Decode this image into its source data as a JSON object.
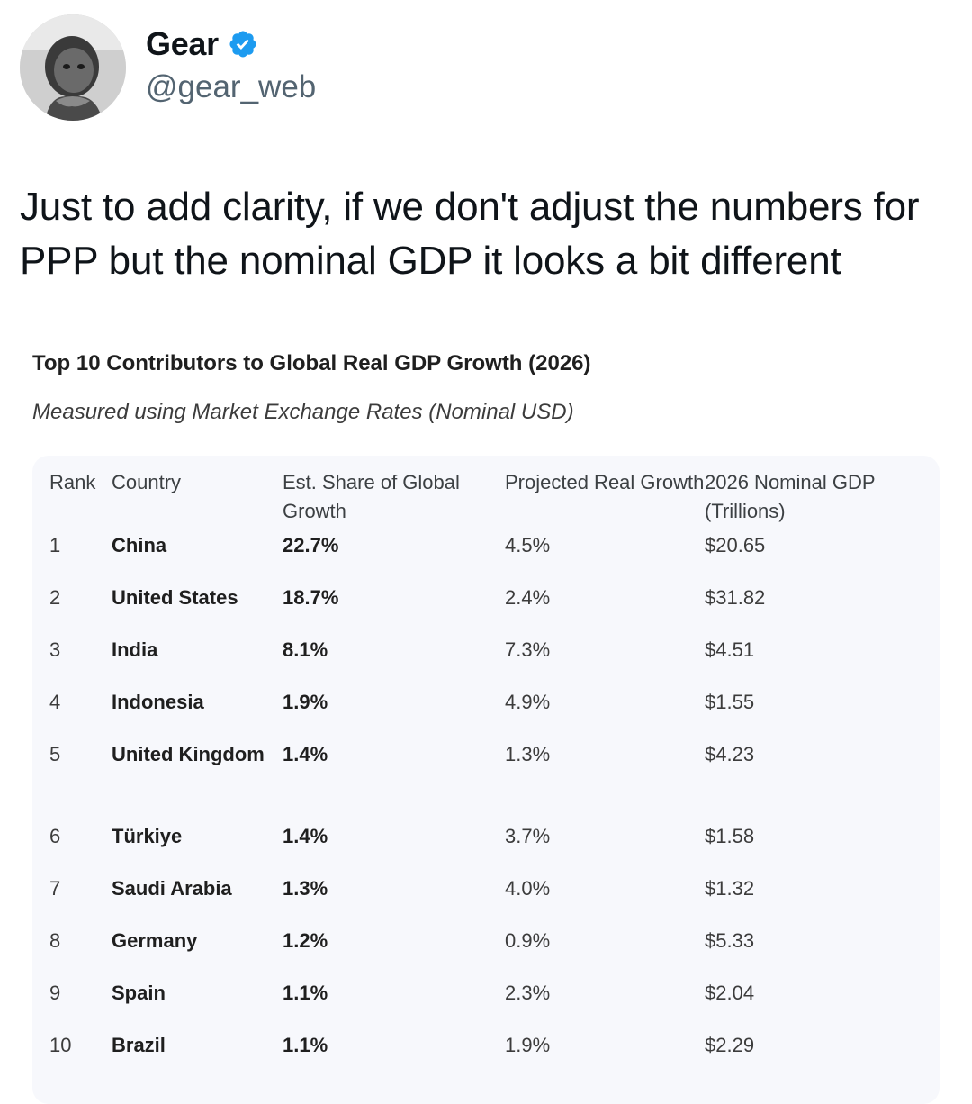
{
  "author": {
    "display_name": "Gear",
    "handle": "@gear_web",
    "verified_icon": "verified-badge-icon",
    "verified_color": "#1d9bf0"
  },
  "tweet": {
    "text": "Just to add clarity, if we don't adjust the numbers for PPP but the nominal GDP it looks a bit different"
  },
  "embed": {
    "title": "Top 10 Contributors to Global Real GDP Growth (2026)",
    "subtitle": "Measured using Market Exchange Rates (Nominal USD)",
    "table": {
      "headers": {
        "rank": "Rank",
        "country": "Country",
        "share": "Est. Share of Global Growth",
        "growth": "Projected Real Growth",
        "gdp": "2026 Nominal GDP (Trillions)"
      },
      "rows": [
        {
          "rank": "1",
          "country": "China",
          "share": "22.7%",
          "growth": "4.5%",
          "gdp": "$20.65"
        },
        {
          "rank": "2",
          "country": "United States",
          "share": "18.7%",
          "growth": "2.4%",
          "gdp": "$31.82"
        },
        {
          "rank": "3",
          "country": "India",
          "share": "8.1%",
          "growth": "7.3%",
          "gdp": "$4.51"
        },
        {
          "rank": "4",
          "country": "Indonesia",
          "share": "1.9%",
          "growth": "4.9%",
          "gdp": "$1.55"
        },
        {
          "rank": "5",
          "country": "United Kingdom",
          "share": "1.4%",
          "growth": "1.3%",
          "gdp": "$4.23"
        },
        {
          "rank": "6",
          "country": "Türkiye",
          "share": "1.4%",
          "growth": "3.7%",
          "gdp": "$1.58"
        },
        {
          "rank": "7",
          "country": "Saudi Arabia",
          "share": "1.3%",
          "growth": "4.0%",
          "gdp": "$1.32"
        },
        {
          "rank": "8",
          "country": "Germany",
          "share": "1.2%",
          "growth": "0.9%",
          "gdp": "$5.33"
        },
        {
          "rank": "9",
          "country": "Spain",
          "share": "1.1%",
          "growth": "2.3%",
          "gdp": "$2.04"
        },
        {
          "rank": "10",
          "country": "Brazil",
          "share": "1.1%",
          "growth": "1.9%",
          "gdp": "$2.29"
        }
      ]
    }
  }
}
